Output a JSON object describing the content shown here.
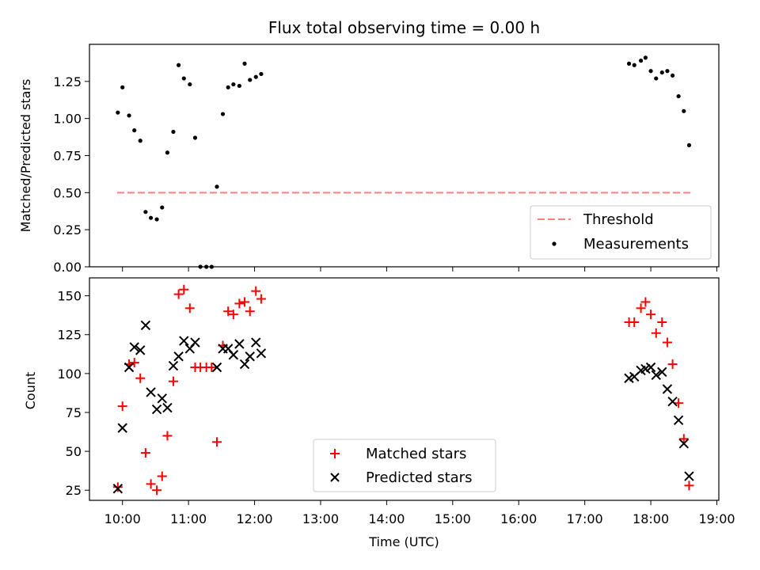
{
  "chart_data": [
    {
      "type": "scatter",
      "title": "Flux total observing time = 0.00 h",
      "xlabel": "",
      "ylabel": "Matched/Predicted stars",
      "xlim": [
        9.5,
        19.03
      ],
      "ylim": [
        0,
        1.5
      ],
      "yticks": [
        0.0,
        0.25,
        0.5,
        0.75,
        1.0,
        1.25
      ],
      "ytick_labels": [
        "0.00",
        "0.25",
        "0.50",
        "0.75",
        "1.00",
        "1.25"
      ],
      "grid": false,
      "legend_position": "lower-right",
      "series": [
        {
          "name": "Threshold",
          "kind": "dashed-line",
          "color": "#ff7f7f",
          "x": [
            9.92,
            18.6
          ],
          "y": [
            0.5,
            0.5
          ]
        },
        {
          "name": "Measurements",
          "kind": "dot",
          "color": "#000000",
          "x": [
            9.93,
            10.0,
            10.1,
            10.18,
            10.27,
            10.35,
            10.43,
            10.52,
            10.6,
            10.68,
            10.77,
            10.85,
            10.93,
            11.02,
            11.1,
            11.18,
            11.27,
            11.35,
            11.43,
            11.52,
            11.6,
            11.68,
            11.77,
            11.85,
            11.93,
            12.02,
            12.1,
            17.67,
            17.75,
            17.85,
            17.92,
            18.0,
            18.08,
            18.17,
            18.25,
            18.33,
            18.42,
            18.5,
            18.58
          ],
          "y": [
            1.04,
            1.21,
            1.02,
            0.92,
            0.85,
            0.37,
            0.33,
            0.32,
            0.4,
            0.77,
            0.91,
            1.36,
            1.27,
            1.23,
            0.87,
            0.0,
            0.0,
            0.0,
            0.54,
            1.03,
            1.21,
            1.23,
            1.22,
            1.37,
            1.26,
            1.28,
            1.3,
            1.37,
            1.36,
            1.39,
            1.41,
            1.32,
            1.27,
            1.31,
            1.32,
            1.29,
            1.15,
            1.05,
            0.82
          ]
        }
      ]
    },
    {
      "type": "scatter",
      "title": "",
      "xlabel": "Time (UTC)",
      "ylabel": "Count",
      "xlim": [
        9.5,
        19.03
      ],
      "ylim": [
        18.5,
        161.5
      ],
      "yticks": [
        25,
        50,
        75,
        100,
        125,
        150
      ],
      "ytick_labels": [
        "25",
        "50",
        "75",
        "100",
        "125",
        "150"
      ],
      "xticks": [
        10,
        11,
        12,
        13,
        14,
        15,
        16,
        17,
        18,
        19
      ],
      "xtick_labels": [
        "10:00",
        "11:00",
        "12:00",
        "13:00",
        "14:00",
        "15:00",
        "16:00",
        "17:00",
        "18:00",
        "19:00"
      ],
      "grid": false,
      "legend_position": "lower-center",
      "series": [
        {
          "name": "Matched stars",
          "kind": "plus",
          "color": "#ff0000",
          "x": [
            9.93,
            10.0,
            10.1,
            10.18,
            10.27,
            10.35,
            10.43,
            10.52,
            10.6,
            10.68,
            10.77,
            10.85,
            10.93,
            11.02,
            11.1,
            11.18,
            11.27,
            11.35,
            11.43,
            11.52,
            11.6,
            11.68,
            11.77,
            11.85,
            11.93,
            12.02,
            12.1,
            17.67,
            17.75,
            17.85,
            17.92,
            18.0,
            18.08,
            18.17,
            18.25,
            18.33,
            18.42,
            18.5,
            18.58
          ],
          "y": [
            27,
            79,
            106,
            107,
            97,
            49,
            29,
            25,
            34,
            60,
            95,
            151,
            154,
            142,
            104,
            104,
            104,
            104,
            56,
            118,
            140,
            138,
            145,
            146,
            140,
            153,
            148,
            133,
            133,
            142,
            146,
            138,
            126,
            133,
            120,
            106,
            81,
            58,
            28
          ]
        },
        {
          "name": "Predicted stars",
          "kind": "x",
          "color": "#000000",
          "x": [
            9.93,
            10.0,
            10.1,
            10.18,
            10.27,
            10.35,
            10.43,
            10.52,
            10.6,
            10.68,
            10.77,
            10.85,
            10.93,
            11.02,
            11.1,
            11.43,
            11.52,
            11.6,
            11.68,
            11.77,
            11.85,
            11.93,
            12.02,
            12.1,
            17.67,
            17.75,
            17.85,
            17.92,
            18.0,
            18.08,
            18.17,
            18.25,
            18.33,
            18.42,
            18.5,
            18.58
          ],
          "y": [
            26,
            65,
            104,
            117,
            115,
            131,
            88,
            77,
            84,
            78,
            105,
            111,
            121,
            116,
            120,
            104,
            116,
            116,
            112,
            119,
            106,
            111,
            120,
            113,
            97,
            98,
            102,
            103,
            104,
            99,
            101,
            90,
            82,
            70,
            55,
            34
          ]
        }
      ]
    }
  ]
}
